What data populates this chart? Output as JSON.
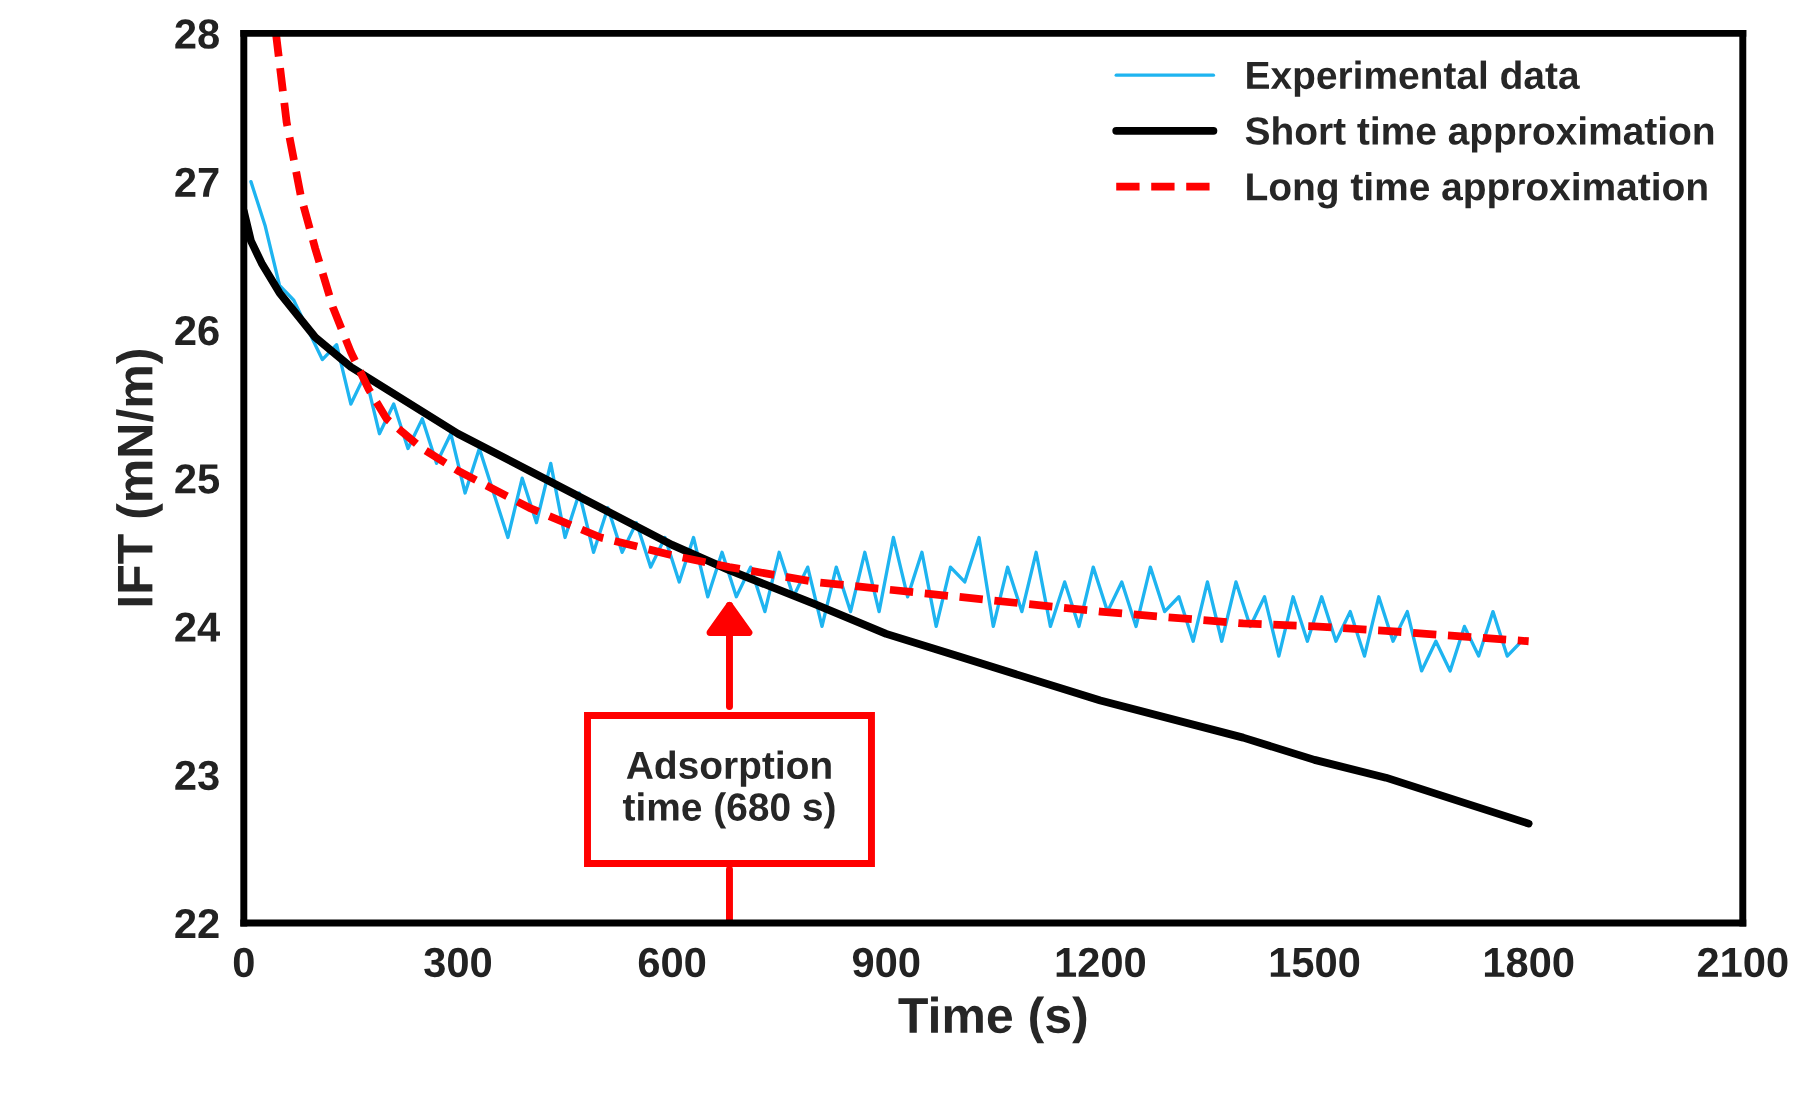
{
  "chart_data": {
    "type": "line",
    "xlabel": "Time (s)",
    "ylabel": "IFT (mN/m)",
    "xlim": [
      0,
      2100
    ],
    "ylim": [
      22,
      28
    ],
    "xticks": [
      0,
      300,
      600,
      900,
      1200,
      1500,
      1800,
      2100
    ],
    "yticks": [
      22,
      23,
      24,
      25,
      26,
      27,
      28
    ],
    "grid": false,
    "legend": "top right",
    "marker": "none",
    "series": [
      {
        "name": "Experimental data",
        "color": "#1eb4f0",
        "line_style": "solid",
        "x": [
          10,
          30,
          50,
          70,
          90,
          110,
          130,
          150,
          170,
          190,
          210,
          230,
          250,
          270,
          290,
          310,
          330,
          350,
          370,
          390,
          410,
          430,
          450,
          470,
          490,
          510,
          530,
          550,
          570,
          590,
          610,
          630,
          650,
          670,
          690,
          710,
          730,
          750,
          770,
          790,
          810,
          830,
          850,
          870,
          890,
          910,
          930,
          950,
          970,
          990,
          1010,
          1030,
          1050,
          1070,
          1090,
          1110,
          1130,
          1150,
          1170,
          1190,
          1210,
          1230,
          1250,
          1270,
          1290,
          1310,
          1330,
          1350,
          1370,
          1390,
          1410,
          1430,
          1450,
          1470,
          1490,
          1510,
          1530,
          1550,
          1570,
          1590,
          1610,
          1630,
          1650,
          1670,
          1690,
          1710,
          1730,
          1750,
          1770,
          1790
        ],
        "values": [
          27.0,
          26.7,
          26.3,
          26.2,
          26.0,
          25.8,
          25.9,
          25.5,
          25.7,
          25.3,
          25.5,
          25.2,
          25.4,
          25.1,
          25.3,
          24.9,
          25.2,
          24.9,
          24.6,
          25.0,
          24.7,
          25.1,
          24.6,
          24.9,
          24.5,
          24.8,
          24.5,
          24.7,
          24.4,
          24.6,
          24.3,
          24.6,
          24.2,
          24.5,
          24.2,
          24.4,
          24.1,
          24.5,
          24.2,
          24.4,
          24.0,
          24.4,
          24.1,
          24.5,
          24.1,
          24.6,
          24.2,
          24.5,
          24.0,
          24.4,
          24.3,
          24.6,
          24.0,
          24.4,
          24.1,
          24.5,
          24.0,
          24.3,
          24.0,
          24.4,
          24.1,
          24.3,
          24.0,
          24.4,
          24.1,
          24.2,
          23.9,
          24.3,
          23.9,
          24.3,
          24.0,
          24.2,
          23.8,
          24.2,
          23.9,
          24.2,
          23.9,
          24.1,
          23.8,
          24.2,
          23.9,
          24.1,
          23.7,
          23.9,
          23.7,
          24.0,
          23.8,
          24.1,
          23.8,
          23.9
        ]
      },
      {
        "name": "Short time approximation",
        "color": "#000000",
        "line_style": "solid",
        "x": [
          0,
          10,
          25,
          50,
          100,
          150,
          200,
          300,
          400,
          500,
          600,
          680,
          800,
          900,
          1000,
          1200,
          1400,
          1500,
          1600,
          1800
        ],
        "values": [
          26.8,
          26.6,
          26.45,
          26.25,
          25.95,
          25.75,
          25.6,
          25.3,
          25.05,
          24.8,
          24.55,
          24.38,
          24.15,
          23.95,
          23.8,
          23.5,
          23.25,
          23.1,
          22.98,
          22.67
        ]
      },
      {
        "name": "Long time approximation",
        "color": "#ff0000",
        "line_style": "dashed",
        "x": [
          45,
          60,
          80,
          100,
          125,
          150,
          175,
          200,
          250,
          300,
          400,
          500,
          600,
          680,
          800,
          900,
          1000,
          1200,
          1400,
          1500,
          1600,
          1800
        ],
        "values": [
          28.0,
          27.4,
          26.9,
          26.55,
          26.15,
          25.85,
          25.6,
          25.4,
          25.2,
          25.05,
          24.8,
          24.6,
          24.48,
          24.4,
          24.3,
          24.25,
          24.2,
          24.1,
          24.02,
          24.0,
          23.97,
          23.9
        ]
      }
    ],
    "annotations": [
      "Adsorption\ntime (680 s)"
    ]
  }
}
